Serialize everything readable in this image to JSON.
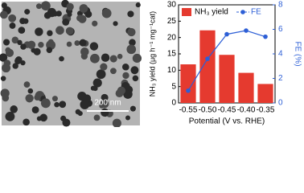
{
  "image": {
    "scale_bar": "200 nm"
  },
  "chart_data": {
    "type": "bar",
    "categories": [
      "-0.55",
      "-0.50",
      "-0.45",
      "-0.40",
      "-0.35"
    ],
    "xlabel": "Potential (V vs. RHE)",
    "ylabel": "NH₃ yield (μg h⁻¹ mg⁻¹cat)",
    "y2label": "FE (%)",
    "ylim": [
      0,
      30
    ],
    "yticks": [
      0,
      5,
      10,
      15,
      20,
      25,
      30
    ],
    "y2lim": [
      0,
      8
    ],
    "y2ticks": [
      0,
      2,
      4,
      6,
      8
    ],
    "series": [
      {
        "name": "NH₃ yield",
        "type": "bar",
        "color": "#e53a2f",
        "values": [
          11.8,
          22.2,
          14.7,
          9.2,
          5.8
        ]
      },
      {
        "name": "FE",
        "type": "line",
        "axis": "y2",
        "color": "#2d5fd6",
        "values": [
          1.0,
          3.6,
          5.6,
          5.9,
          5.4
        ]
      }
    ]
  }
}
